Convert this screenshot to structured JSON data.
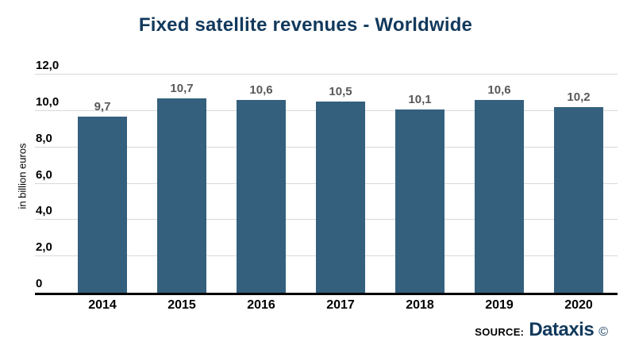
{
  "title": "Fixed satellite revenues - Worldwide",
  "chart_data": {
    "type": "bar",
    "title": "Fixed satellite revenues - Worldwide",
    "categories": [
      "2014",
      "2015",
      "2016",
      "2017",
      "2018",
      "2019",
      "2020"
    ],
    "values": [
      9.7,
      10.7,
      10.6,
      10.5,
      10.1,
      10.6,
      10.2
    ],
    "value_labels": [
      "9,7",
      "10,7",
      "10,6",
      "10,5",
      "10,1",
      "10,6",
      "10,2"
    ],
    "xlabel": "",
    "ylabel": "in billion euros",
    "ylim": [
      0,
      12
    ],
    "y_ticks": [
      0,
      2,
      4,
      6,
      8,
      10,
      12
    ],
    "y_tick_labels": [
      "0",
      "2,0",
      "4,0",
      "6,0",
      "8,0",
      "10,0",
      "12,0"
    ],
    "grid": "horizontal",
    "legend": "none",
    "bar_color": "#34607E"
  },
  "footer": {
    "source_label": "SOURCE:",
    "source_name": "Dataxis",
    "copyright_symbol": "©"
  },
  "colors": {
    "title": "#12395C",
    "bar": "#34607E",
    "value_label": "#595959",
    "gridline": "#D8D8D8",
    "axis_line": "#000000",
    "tick_label": "#000000",
    "background": "#FFFFFF"
  }
}
